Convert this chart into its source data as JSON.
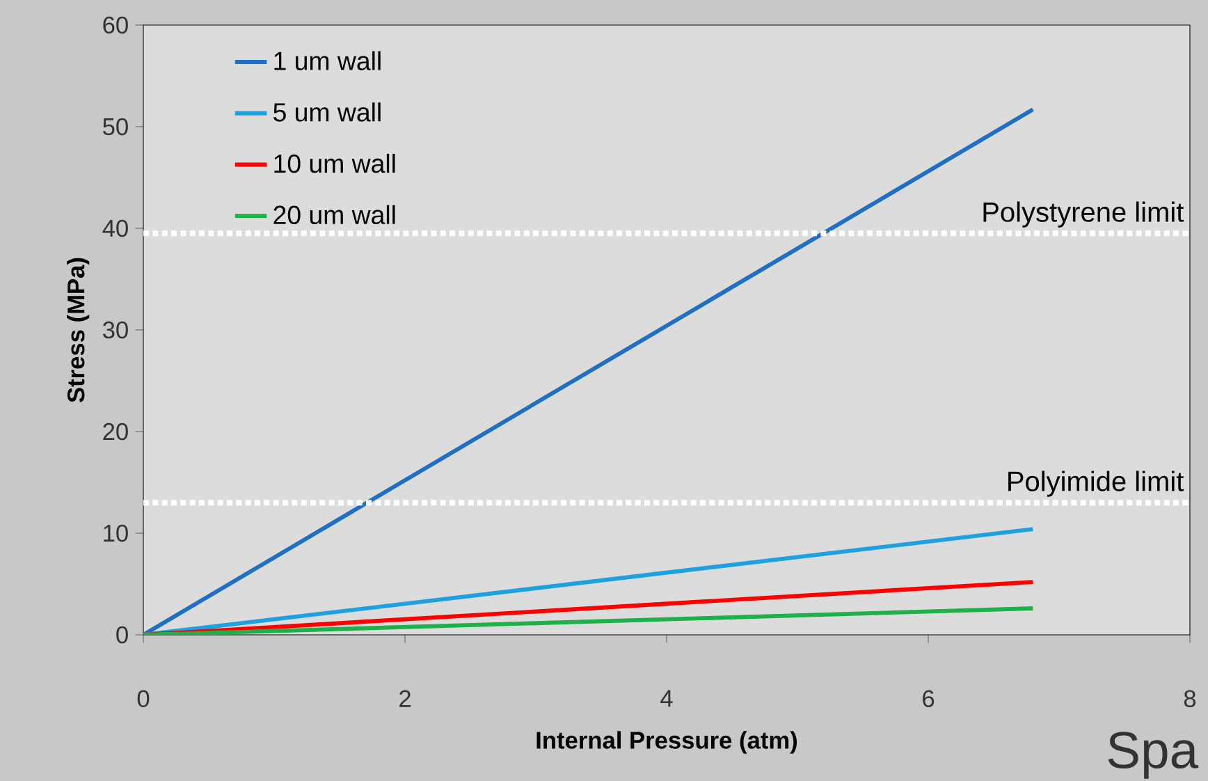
{
  "chart_data": {
    "type": "line",
    "xlabel": "Internal Pressure (atm)",
    "ylabel": "Stress (MPa)",
    "xlim": [
      0,
      8
    ],
    "ylim": [
      0,
      60
    ],
    "xticks": [
      0,
      2,
      4,
      6,
      8
    ],
    "yticks": [
      0,
      10,
      20,
      30,
      40,
      50,
      60
    ],
    "x": [
      0,
      6.8
    ],
    "series": [
      {
        "name": "1 um wall",
        "color": "#1f6fc6",
        "values": [
          0,
          51.7
        ]
      },
      {
        "name": "5 um wall",
        "color": "#1fa0e0",
        "values": [
          0,
          10.4
        ]
      },
      {
        "name": "10 um wall",
        "color": "#ff0000",
        "values": [
          0,
          5.2
        ]
      },
      {
        "name": "20 um wall",
        "color": "#1fb04a",
        "values": [
          0,
          2.6
        ]
      }
    ],
    "ref_lines": [
      {
        "axis": "y",
        "value": 39.5,
        "label": "Polystyrene limit",
        "color": "#ffffff",
        "line_style": "dotted"
      },
      {
        "axis": "y",
        "value": 13,
        "label": "Polyimide limit",
        "color": "#ffffff",
        "line_style": "dotted"
      }
    ],
    "legend": "top left",
    "grid": false,
    "marker": "none",
    "line_style": "solid",
    "annotations": [
      "Spa"
    ]
  }
}
